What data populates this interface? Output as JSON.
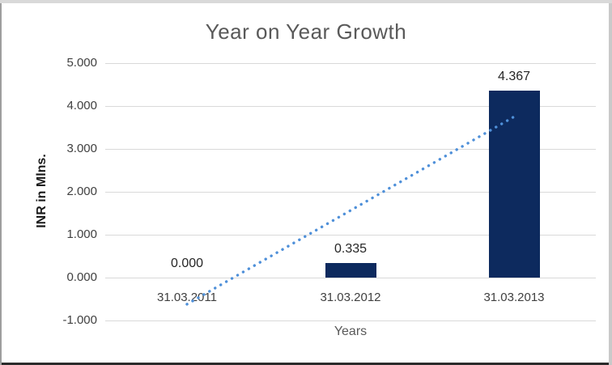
{
  "chart_data": {
    "type": "bar",
    "title": "Year on Year Growth",
    "xlabel": "Years",
    "ylabel": "INR in Mlns.",
    "categories": [
      "31.03.2011",
      "31.03.2012",
      "31.03.2013"
    ],
    "values": [
      0.0,
      0.335,
      4.367
    ],
    "data_labels": [
      "0.000",
      "0.335",
      "4.367"
    ],
    "y_tick_values": [
      5,
      4,
      3,
      2,
      1,
      0,
      -1
    ],
    "y_tick_labels": [
      "5.000",
      "4.000",
      "3.000",
      "2.000",
      "1.000",
      "0.000",
      "-1.000"
    ],
    "ylim": [
      -1,
      5
    ],
    "grid": true,
    "legend": "none",
    "trendline": {
      "type": "linear",
      "style": "dotted",
      "color": "#4f90d9",
      "start": {
        "category_index": 0,
        "value": -0.62
      },
      "end": {
        "category_index": 2,
        "value": 3.75
      }
    },
    "colors": {
      "bar": "#0d2a5e",
      "title_text": "#595959",
      "axis_title_text": "#595959",
      "tick_text": "#404040",
      "data_label_text": "#262626",
      "gridline": "#d9d9d9",
      "background": "#ffffff"
    }
  }
}
